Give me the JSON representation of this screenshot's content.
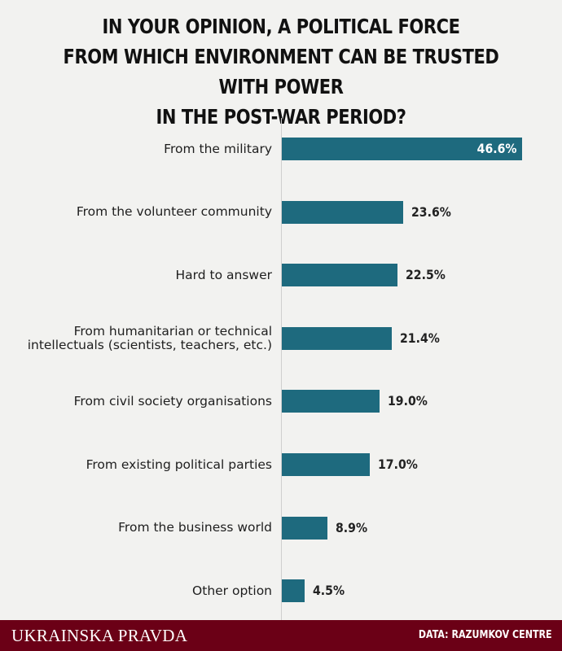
{
  "chart_data": {
    "type": "bar",
    "orientation": "horizontal",
    "title_lines": [
      "IN YOUR OPINION, A POLITICAL FORCE",
      "FROM WHICH ENVIRONMENT CAN BE TRUSTED WITH POWER",
      "IN THE POST-WAR PERIOD?"
    ],
    "categories": [
      "From the military",
      "From the volunteer community",
      "Hard to answer",
      "From humanitarian or technical intellectuals (scientists, teachers, etc.)",
      "From civil society organisations",
      "From existing political parties",
      "From the business world",
      "Other option"
    ],
    "values": [
      46.6,
      23.6,
      22.5,
      21.4,
      19.0,
      17.0,
      8.9,
      4.5
    ],
    "value_labels": [
      "46.6%",
      "23.6%",
      "22.5%",
      "21.4%",
      "19.0%",
      "17.0%",
      "8.9%",
      "4.5%"
    ],
    "bar_color": "#1e6a7e",
    "grid": false,
    "legend": "none"
  },
  "footer": {
    "brand": "UKRAINSKA PRAVDA",
    "source": "DATA: RAZUMKOV CENTRE",
    "background": "#6b0016"
  }
}
